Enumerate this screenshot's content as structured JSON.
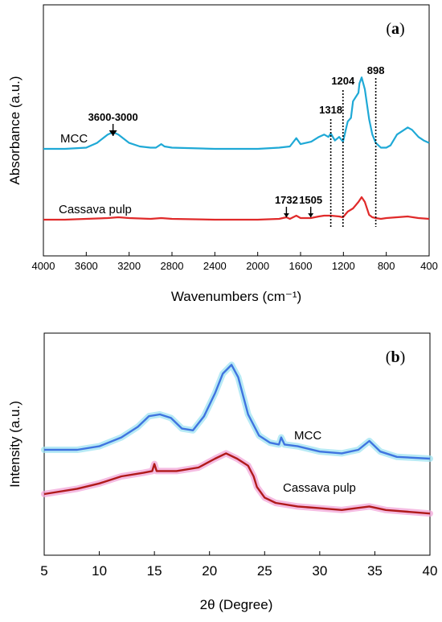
{
  "chart_data": [
    {
      "type": "line",
      "panel_label": "a",
      "xlabel": "Wavenumbers (cm⁻¹)",
      "ylabel": "Absorbance (a.u.)",
      "xlim": [
        4000,
        400
      ],
      "x_reversed": true,
      "xticks": [
        "4000",
        "3600",
        "3200",
        "2800",
        "2400",
        "2000",
        "1600",
        "1200",
        "800",
        "400"
      ],
      "y_ticks_shown": false,
      "series": [
        {
          "name": "MCC",
          "color": "#1fa9d6",
          "points": [
            [
              4000,
              0.4
            ],
            [
              3800,
              0.4
            ],
            [
              3600,
              0.41
            ],
            [
              3500,
              0.45
            ],
            [
              3400,
              0.52
            ],
            [
              3350,
              0.54
            ],
            [
              3300,
              0.52
            ],
            [
              3200,
              0.45
            ],
            [
              3100,
              0.42
            ],
            [
              3000,
              0.41
            ],
            [
              2950,
              0.41
            ],
            [
              2900,
              0.44
            ],
            [
              2870,
              0.42
            ],
            [
              2800,
              0.41
            ],
            [
              2400,
              0.4
            ],
            [
              2000,
              0.4
            ],
            [
              1800,
              0.41
            ],
            [
              1700,
              0.42
            ],
            [
              1640,
              0.49
            ],
            [
              1600,
              0.44
            ],
            [
              1500,
              0.46
            ],
            [
              1430,
              0.5
            ],
            [
              1380,
              0.52
            ],
            [
              1340,
              0.5
            ],
            [
              1318,
              0.53
            ],
            [
              1280,
              0.47
            ],
            [
              1240,
              0.5
            ],
            [
              1204,
              0.46
            ],
            [
              1160,
              0.63
            ],
            [
              1130,
              0.66
            ],
            [
              1110,
              0.8
            ],
            [
              1060,
              0.87
            ],
            [
              1050,
              0.95
            ],
            [
              1030,
              1.0
            ],
            [
              1000,
              0.9
            ],
            [
              960,
              0.65
            ],
            [
              930,
              0.52
            ],
            [
              898,
              0.45
            ],
            [
              850,
              0.41
            ],
            [
              800,
              0.41
            ],
            [
              760,
              0.43
            ],
            [
              700,
              0.52
            ],
            [
              650,
              0.55
            ],
            [
              600,
              0.58
            ],
            [
              560,
              0.56
            ],
            [
              500,
              0.5
            ],
            [
              450,
              0.47
            ],
            [
              400,
              0.45
            ]
          ]
        },
        {
          "name": "Cassava pulp",
          "color": "#e02a2a",
          "points": [
            [
              4000,
              0.0
            ],
            [
              3800,
              0.0
            ],
            [
              3600,
              0.01
            ],
            [
              3400,
              0.02
            ],
            [
              3300,
              0.03
            ],
            [
              3200,
              0.02
            ],
            [
              3000,
              0.01
            ],
            [
              2900,
              0.02
            ],
            [
              2800,
              0.01
            ],
            [
              2400,
              0.0
            ],
            [
              2000,
              0.0
            ],
            [
              1800,
              0.01
            ],
            [
              1732,
              0.03
            ],
            [
              1700,
              0.01
            ],
            [
              1640,
              0.05
            ],
            [
              1600,
              0.02
            ],
            [
              1505,
              0.02
            ],
            [
              1430,
              0.04
            ],
            [
              1380,
              0.05
            ],
            [
              1318,
              0.05
            ],
            [
              1240,
              0.04
            ],
            [
              1204,
              0.03
            ],
            [
              1160,
              0.1
            ],
            [
              1110,
              0.14
            ],
            [
              1060,
              0.22
            ],
            [
              1030,
              0.28
            ],
            [
              1000,
              0.22
            ],
            [
              960,
              0.06
            ],
            [
              930,
              0.03
            ],
            [
              898,
              0.02
            ],
            [
              850,
              0.01
            ],
            [
              800,
              0.02
            ],
            [
              700,
              0.03
            ],
            [
              600,
              0.04
            ],
            [
              500,
              0.02
            ],
            [
              400,
              0.01
            ]
          ]
        }
      ],
      "annotations": [
        {
          "label": "3600-3000",
          "x": 3350,
          "type": "arrow",
          "series": "MCC"
        },
        {
          "label": "1732",
          "x": 1732,
          "type": "arrow",
          "series": "Cassava pulp"
        },
        {
          "label": "1505",
          "x": 1505,
          "type": "arrow",
          "series": "Cassava pulp"
        },
        {
          "label": "1318",
          "x": 1318,
          "type": "dotted-line"
        },
        {
          "label": "1204",
          "x": 1204,
          "type": "dotted-line"
        },
        {
          "label": "898",
          "x": 898,
          "type": "dotted-line"
        }
      ]
    },
    {
      "type": "line",
      "panel_label": "b",
      "xlabel": "2θ (Degree)",
      "ylabel": "Intensity (a.u.)",
      "xlim": [
        5,
        40
      ],
      "xticks": [
        "5",
        "10",
        "15",
        "20",
        "25",
        "30",
        "35",
        "40"
      ],
      "y_ticks_shown": false,
      "series": [
        {
          "name": "MCC",
          "color": "#3f74e0",
          "points": [
            [
              5,
              0.35
            ],
            [
              8,
              0.35
            ],
            [
              10,
              0.37
            ],
            [
              12,
              0.42
            ],
            [
              13.5,
              0.48
            ],
            [
              14.5,
              0.54
            ],
            [
              15.5,
              0.55
            ],
            [
              16.5,
              0.53
            ],
            [
              17.5,
              0.47
            ],
            [
              18.5,
              0.46
            ],
            [
              19.5,
              0.54
            ],
            [
              20.5,
              0.67
            ],
            [
              21.2,
              0.78
            ],
            [
              22.0,
              0.83
            ],
            [
              22.6,
              0.76
            ],
            [
              23.5,
              0.55
            ],
            [
              24.5,
              0.43
            ],
            [
              25.5,
              0.39
            ],
            [
              26.3,
              0.38
            ],
            [
              26.5,
              0.42
            ],
            [
              26.8,
              0.38
            ],
            [
              28,
              0.37
            ],
            [
              30,
              0.34
            ],
            [
              32,
              0.33
            ],
            [
              33.5,
              0.35
            ],
            [
              34.5,
              0.4
            ],
            [
              35.5,
              0.34
            ],
            [
              37,
              0.31
            ],
            [
              40,
              0.3
            ]
          ]
        },
        {
          "name": "Cassava pulp",
          "color": "#b01a1a",
          "points": [
            [
              5,
              0.1
            ],
            [
              8,
              0.13
            ],
            [
              10,
              0.16
            ],
            [
              12,
              0.2
            ],
            [
              14,
              0.22
            ],
            [
              14.8,
              0.23
            ],
            [
              15,
              0.27
            ],
            [
              15.2,
              0.23
            ],
            [
              17,
              0.23
            ],
            [
              19,
              0.25
            ],
            [
              20.5,
              0.3
            ],
            [
              21.5,
              0.33
            ],
            [
              22.5,
              0.3
            ],
            [
              23.5,
              0.26
            ],
            [
              24,
              0.2
            ],
            [
              24.3,
              0.14
            ],
            [
              25,
              0.08
            ],
            [
              26,
              0.05
            ],
            [
              28,
              0.03
            ],
            [
              30,
              0.02
            ],
            [
              32,
              0.01
            ],
            [
              34.5,
              0.03
            ],
            [
              36,
              0.01
            ],
            [
              38,
              0.0
            ],
            [
              40,
              -0.01
            ]
          ]
        }
      ]
    }
  ]
}
